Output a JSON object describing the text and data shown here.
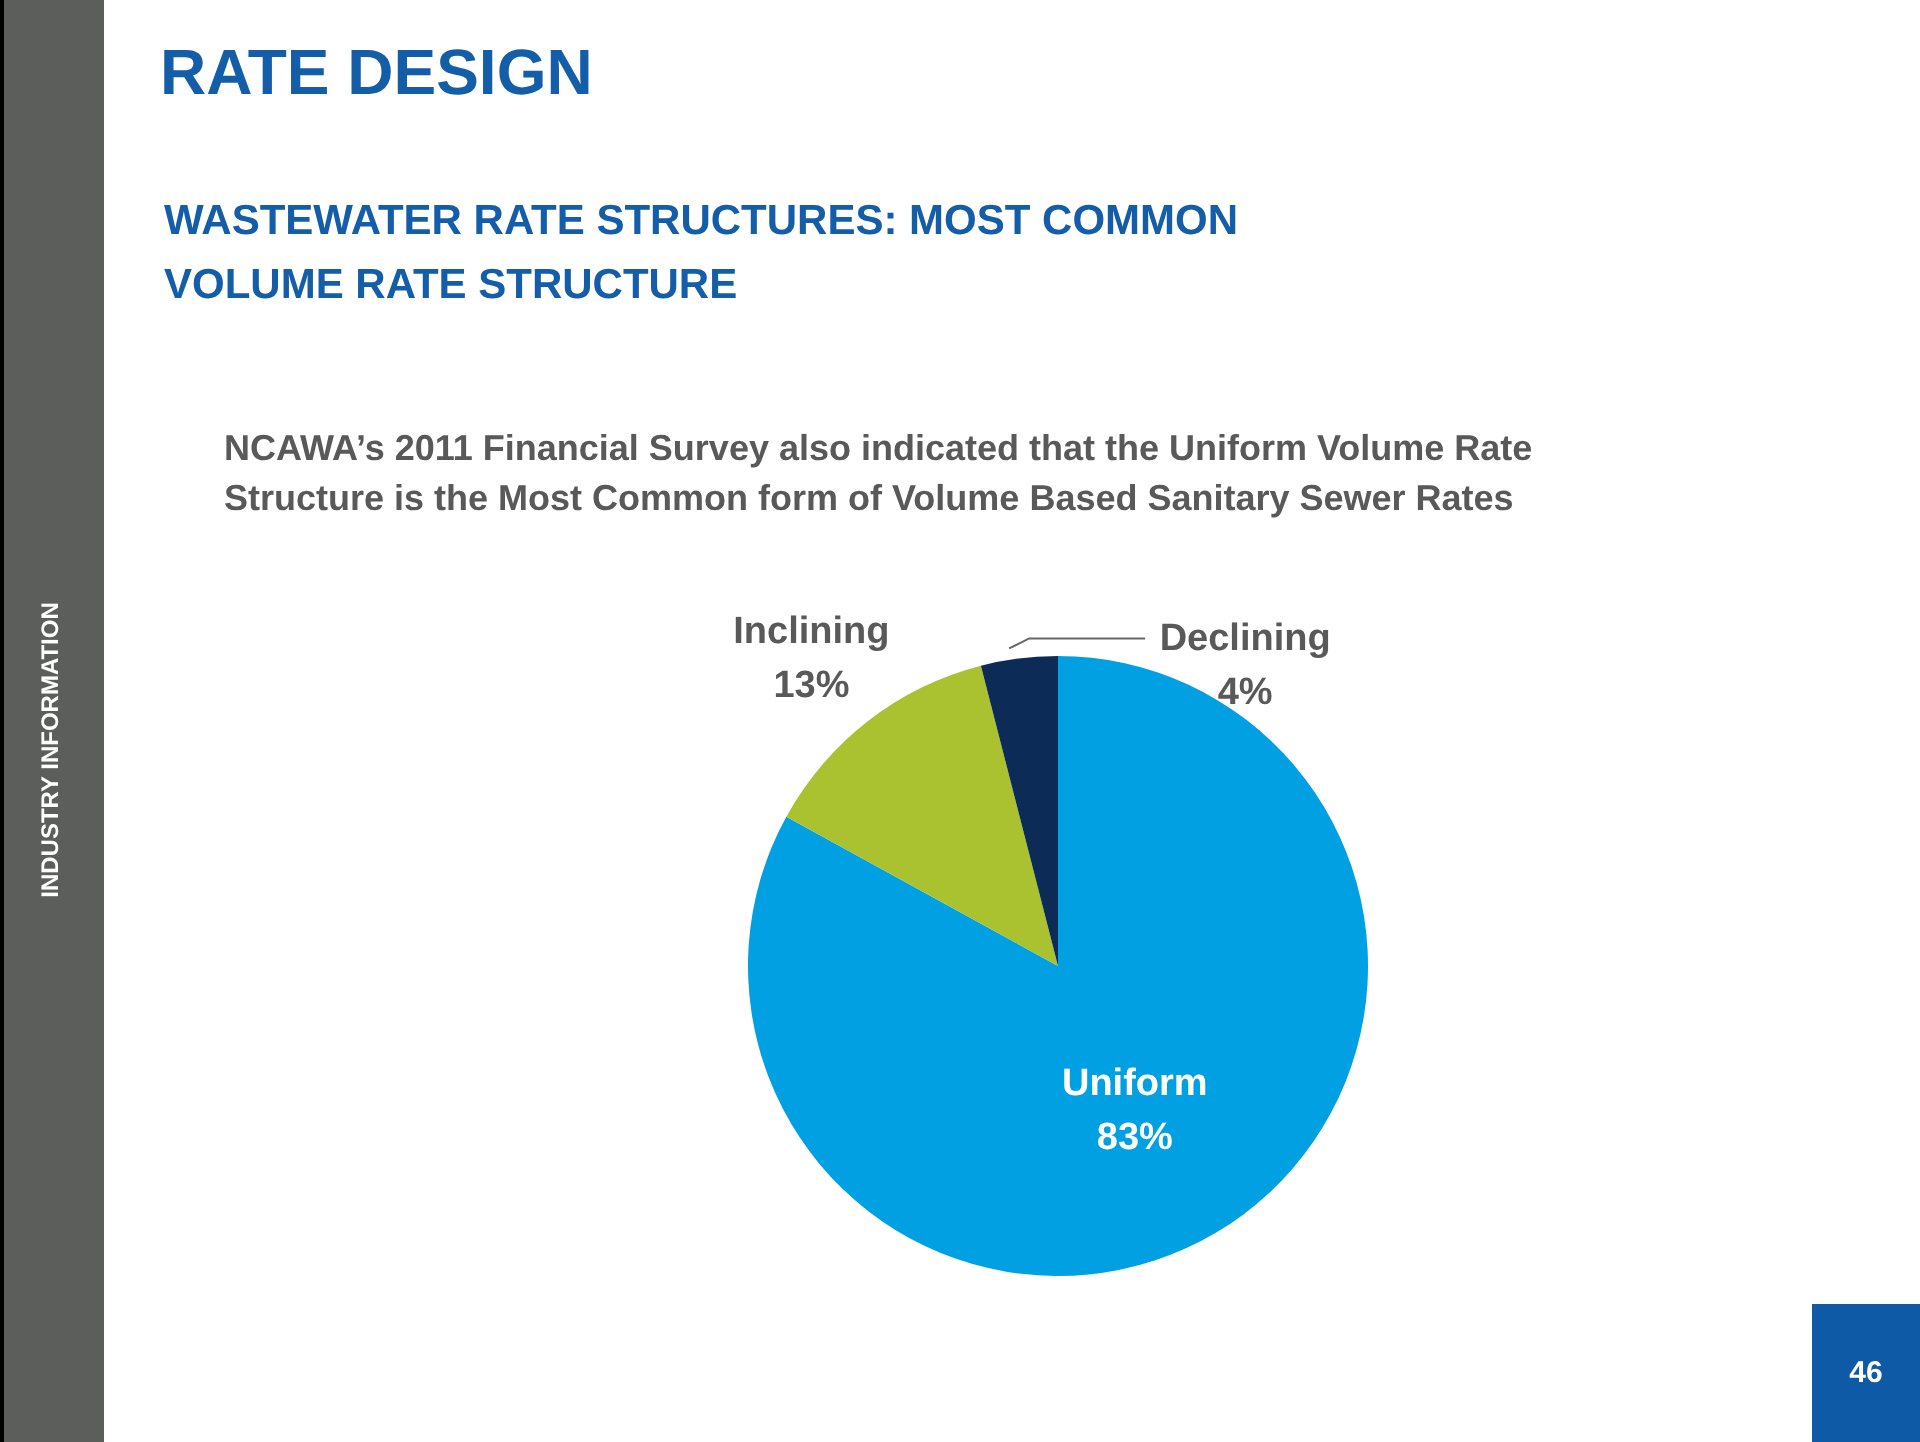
{
  "chart_data": {
    "type": "pie",
    "title": "RATE DESIGN",
    "subtitle": "WASTEWATER RATE STRUCTURES: MOST COMMON VOLUME RATE STRUCTURE",
    "annotations": [
      "NCAWA’s 2011 Financial Survey also indicated that the Uniform Volume Rate Structure is the Most Common form of Volume Based Sanitary Sewer Rates",
      "INDUSTRY INFORMATION",
      "46"
    ],
    "categories": [
      "Uniform",
      "Inclining",
      "Declining"
    ],
    "values": [
      83,
      13,
      4
    ],
    "colors": [
      "#00a0e3",
      "#aac22f",
      "#0c2c57"
    ],
    "value_labels": [
      "83%",
      "13%",
      "4%"
    ]
  }
}
